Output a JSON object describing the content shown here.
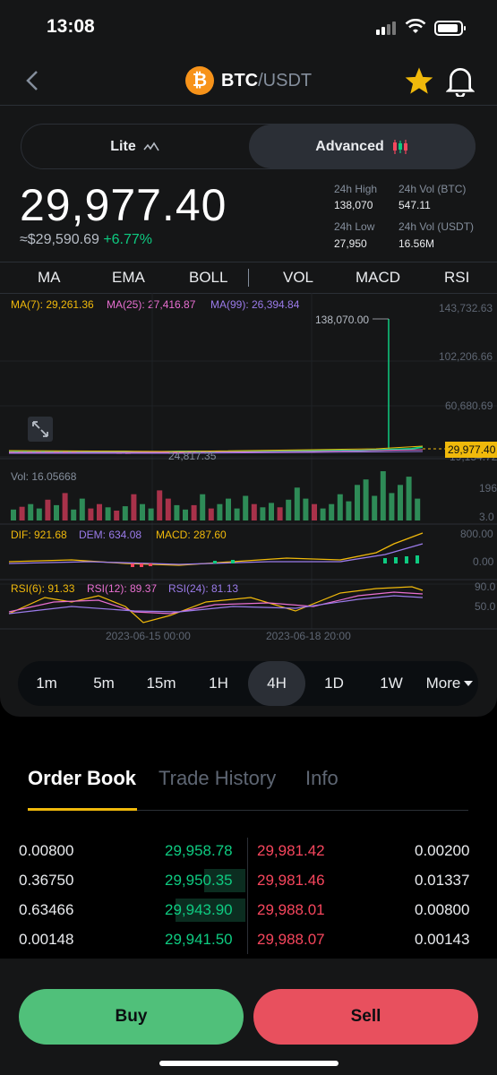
{
  "status": {
    "time": "13:08"
  },
  "header": {
    "base": "BTC",
    "quote": "/USDT",
    "logo_glyph": "₿"
  },
  "mode": {
    "lite": "Lite",
    "advanced": "Advanced",
    "active": "Advanced"
  },
  "ticker": {
    "price": "29,977.40",
    "approx": "≈$29,590.69",
    "change": "+6.77%",
    "high_label": "24h High",
    "high": "138,070",
    "vol_btc_label": "24h Vol (BTC)",
    "vol_btc": "547.11",
    "low_label": "24h Low",
    "low": "27,950",
    "vol_usdt_label": "24h Vol (USDT)",
    "vol_usdt": "16.56M"
  },
  "indicators": [
    "MA",
    "EMA",
    "BOLL",
    "VOL",
    "MACD",
    "RSI"
  ],
  "chart_legend": {
    "ma7": "MA(7): 29,261.36",
    "ma25": "MA(25): 27,416.87",
    "ma99": "MA(99): 26,394.84",
    "vol": "Vol: 16.05668",
    "dif": "DIF: 921.68",
    "dem": "DEM: 634.08",
    "macd": "MACD: 287.60",
    "rsi6": "RSI(6): 91.33",
    "rsi12": "RSI(12): 89.37",
    "rsi24": "RSI(24): 81.13"
  },
  "chart_data": {
    "type": "line",
    "price_axis": [
      "143,732.63",
      "102,206.66",
      "60,680.69",
      "19,154.72"
    ],
    "max_label": "138,070.00",
    "min_label": "24,817.35",
    "last_price_tag": "29,977.40",
    "vol_axis": [
      "196",
      "3.0"
    ],
    "macd_axis": [
      "800.00",
      "0.00"
    ],
    "rsi_axis": [
      "90.0",
      "50.0"
    ],
    "x_labels": [
      "2023-06-15 00:00",
      "2023-06-18 20:00"
    ],
    "volume_bars": [
      {
        "v": 20,
        "up": true
      },
      {
        "v": 25,
        "up": false
      },
      {
        "v": 30,
        "up": true
      },
      {
        "v": 22,
        "up": true
      },
      {
        "v": 38,
        "up": false
      },
      {
        "v": 28,
        "up": true
      },
      {
        "v": 50,
        "up": false
      },
      {
        "v": 20,
        "up": true
      },
      {
        "v": 40,
        "up": true
      },
      {
        "v": 22,
        "up": false
      },
      {
        "v": 30,
        "up": false
      },
      {
        "v": 24,
        "up": true
      },
      {
        "v": 18,
        "up": false
      },
      {
        "v": 26,
        "up": true
      },
      {
        "v": 48,
        "up": false
      },
      {
        "v": 30,
        "up": true
      },
      {
        "v": 22,
        "up": true
      },
      {
        "v": 55,
        "up": false
      },
      {
        "v": 40,
        "up": false
      },
      {
        "v": 28,
        "up": true
      },
      {
        "v": 20,
        "up": true
      },
      {
        "v": 28,
        "up": false
      },
      {
        "v": 48,
        "up": true
      },
      {
        "v": 22,
        "up": false
      },
      {
        "v": 30,
        "up": true
      },
      {
        "v": 40,
        "up": true
      },
      {
        "v": 22,
        "up": true
      },
      {
        "v": 45,
        "up": true
      },
      {
        "v": 30,
        "up": false
      },
      {
        "v": 24,
        "up": true
      },
      {
        "v": 32,
        "up": true
      },
      {
        "v": 24,
        "up": false
      },
      {
        "v": 38,
        "up": true
      },
      {
        "v": 60,
        "up": true
      },
      {
        "v": 40,
        "up": true
      },
      {
        "v": 30,
        "up": false
      },
      {
        "v": 22,
        "up": true
      },
      {
        "v": 30,
        "up": true
      },
      {
        "v": 48,
        "up": true
      },
      {
        "v": 35,
        "up": true
      },
      {
        "v": 65,
        "up": true
      },
      {
        "v": 75,
        "up": true
      },
      {
        "v": 45,
        "up": true
      },
      {
        "v": 90,
        "up": true
      },
      {
        "v": 50,
        "up": true
      },
      {
        "v": 65,
        "up": true
      },
      {
        "v": 80,
        "up": true
      },
      {
        "v": 40,
        "up": true
      }
    ]
  },
  "timeframes": [
    "1m",
    "5m",
    "15m",
    "1H",
    "4H",
    "1D",
    "1W",
    "More"
  ],
  "active_timeframe": "4H",
  "orderbook": {
    "tabs": [
      "Order Book",
      "Trade History",
      "Info"
    ],
    "rows": [
      {
        "bid_qty": "0.00800",
        "bid": "29,958.78",
        "ask": "29,981.42",
        "ask_qty": "0.00200"
      },
      {
        "bid_qty": "0.36750",
        "bid": "29,950.35",
        "ask": "29,981.46",
        "ask_qty": "0.01337"
      },
      {
        "bid_qty": "0.63466",
        "bid": "29,943.90",
        "ask": "29,988.01",
        "ask_qty": "0.00800"
      },
      {
        "bid_qty": "0.00148",
        "bid": "29,941.50",
        "ask": "29,988.07",
        "ask_qty": "0.00143"
      }
    ]
  },
  "actions": {
    "buy": "Buy",
    "sell": "Sell"
  },
  "colors": {
    "up": "#0ecb81",
    "down": "#f6465d",
    "accent": "#f0b90b",
    "buy": "#50c07a",
    "sell": "#e8505e"
  }
}
